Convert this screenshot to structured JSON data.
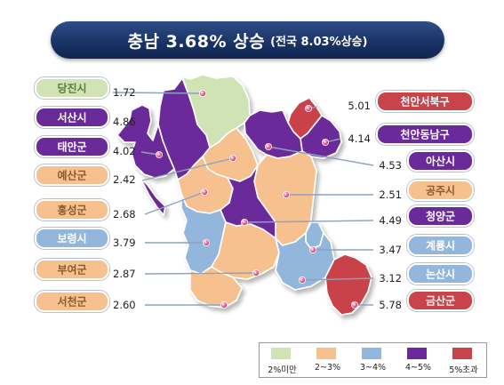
{
  "title": {
    "main": "충남 3.68% 상승",
    "sub": "(전국 8.03%상승)"
  },
  "colors": {
    "lt2": "#cfe3b4",
    "r23": "#f7c08f",
    "r34": "#93b6dc",
    "r45": "#6a2a9a",
    "gt5": "#c9434a",
    "line": "#8aa3c0",
    "dot": "#d94a86"
  },
  "regions": [
    {
      "id": "dangjin",
      "name": "당진시",
      "value": "1.72",
      "cls": "lt2"
    },
    {
      "id": "seosan",
      "name": "서산시",
      "value": "4.86",
      "cls": "r45"
    },
    {
      "id": "taean",
      "name": "태안군",
      "value": "4.02",
      "cls": "r45"
    },
    {
      "id": "yesan",
      "name": "예산군",
      "value": "2.42",
      "cls": "r23"
    },
    {
      "id": "hongseong",
      "name": "홍성군",
      "value": "2.68",
      "cls": "r23"
    },
    {
      "id": "boryeong",
      "name": "보령시",
      "value": "3.79",
      "cls": "r34"
    },
    {
      "id": "buyeo",
      "name": "부여군",
      "value": "2.87",
      "cls": "r23"
    },
    {
      "id": "seocheon",
      "name": "서천군",
      "value": "2.60",
      "cls": "r23"
    },
    {
      "id": "cheonan_sb",
      "name": "천안서북구",
      "value": "5.01",
      "cls": "gt5"
    },
    {
      "id": "cheonan_dn",
      "name": "천안동남구",
      "value": "4.14",
      "cls": "r45"
    },
    {
      "id": "asan",
      "name": "아산시",
      "value": "4.53",
      "cls": "r45"
    },
    {
      "id": "gongju",
      "name": "공주시",
      "value": "2.51",
      "cls": "r23"
    },
    {
      "id": "cheongyang",
      "name": "청양군",
      "value": "4.49",
      "cls": "r45"
    },
    {
      "id": "gyeryong",
      "name": "계룡시",
      "value": "3.47",
      "cls": "r34"
    },
    {
      "id": "nonsan",
      "name": "논산시",
      "value": "3.12",
      "cls": "r34"
    },
    {
      "id": "geumsan",
      "name": "금산군",
      "value": "5.78",
      "cls": "gt5"
    }
  ],
  "legend": [
    {
      "label": "2%미만",
      "cls": "lt2"
    },
    {
      "label": "2~3%",
      "cls": "r23"
    },
    {
      "label": "3~4%",
      "cls": "r34"
    },
    {
      "label": "4~5%",
      "cls": "r45"
    },
    {
      "label": "5%초과",
      "cls": "gt5"
    }
  ]
}
